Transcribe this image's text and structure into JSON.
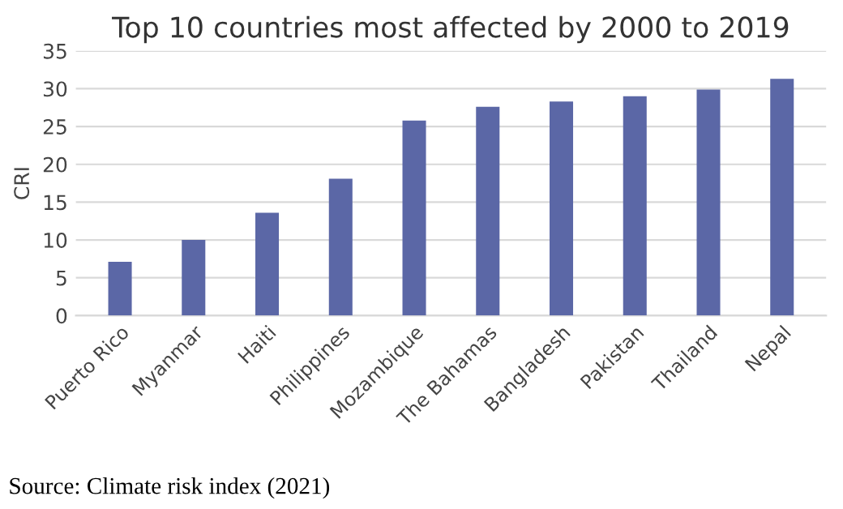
{
  "chart_data": {
    "type": "bar",
    "title": "Top 10 countries most affected by 2000 to 2019",
    "ylabel": "CRI",
    "categories": [
      "Puerto Rico",
      "Myanmar",
      "Haiti",
      "Philippines",
      "Mozambique",
      "The Bahamas",
      "Bangladesh",
      "Pakistan",
      "Thailand",
      "Nepal"
    ],
    "values": [
      7.1,
      10,
      13.6,
      18.1,
      25.8,
      27.6,
      28.3,
      29.0,
      29.9,
      31.3
    ],
    "color": "#5b67a6",
    "ylim": [
      0,
      35
    ],
    "yticks": [
      0,
      5,
      10,
      15,
      20,
      25,
      30,
      35
    ],
    "grid": "y",
    "annotations": [
      "Source: Climate risk index (2021)"
    ]
  }
}
